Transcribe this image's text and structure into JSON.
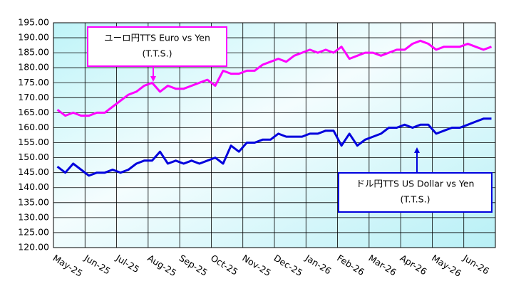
{
  "chart_data": {
    "type": "line",
    "categories": [
      "May-25",
      null,
      null,
      null,
      "Jun-25",
      null,
      null,
      null,
      "Jul-25",
      null,
      null,
      null,
      "Aug-25",
      null,
      null,
      null,
      "Sep-25",
      null,
      null,
      null,
      "Oct-25",
      null,
      null,
      null,
      "Nov-25",
      null,
      null,
      null,
      "Dec-25",
      null,
      null,
      null,
      "Jan-26",
      null,
      null,
      null,
      "Feb-26",
      null,
      null,
      null,
      "Mar-26",
      null,
      null,
      null,
      "Apr-26",
      null,
      null,
      null,
      "May-26",
      null,
      null,
      null,
      "Jun-26",
      null,
      null,
      null
    ],
    "series": [
      {
        "color": "#ff00ff",
        "values": [
          166,
          164,
          165,
          164,
          164,
          165,
          165,
          167,
          169,
          171,
          172,
          174,
          175,
          172,
          174,
          173,
          173,
          174,
          175,
          176,
          174,
          179,
          178,
          178,
          179,
          179,
          181,
          182,
          183,
          182,
          184,
          185,
          186,
          185,
          186,
          185,
          187,
          183,
          184,
          185,
          185,
          184,
          185,
          186,
          186,
          188,
          189,
          188,
          186,
          187,
          187,
          187,
          188,
          187,
          186,
          187
        ]
      },
      {
        "color": "#0000dd",
        "values": [
          147,
          145,
          148,
          146,
          144,
          145,
          145,
          146,
          145,
          146,
          148,
          149,
          149,
          152,
          148,
          149,
          148,
          149,
          148,
          149,
          150,
          148,
          154,
          152,
          155,
          155,
          156,
          156,
          158,
          157,
          157,
          157,
          158,
          158,
          159,
          159,
          154,
          158,
          154,
          156,
          157,
          158,
          160,
          160,
          161,
          160,
          161,
          161,
          158,
          159,
          160,
          160,
          161,
          162,
          163,
          163
        ]
      }
    ],
    "annotations": [
      [
        "ユーロ円TTS Euro vs Yen",
        "(T.T.S.)"
      ],
      [
        "ドル円TTS  US Dollar vs Yen",
        "(T.T.S.)"
      ]
    ],
    "ylim": [
      120,
      195
    ],
    "yticks": [
      {
        "value": 120,
        "label": "120.00"
      },
      {
        "value": 125,
        "label": "125.00"
      },
      {
        "value": 130,
        "label": "130.00"
      },
      {
        "value": 135,
        "label": "135.00"
      },
      {
        "value": 140,
        "label": "140.00"
      },
      {
        "value": 145,
        "label": "145.00"
      },
      {
        "value": 150,
        "label": "150.00"
      },
      {
        "value": 155,
        "label": "155.00"
      },
      {
        "value": 160,
        "label": "160.00"
      },
      {
        "value": 165,
        "label": "165.00"
      },
      {
        "value": 170,
        "label": "170.00"
      },
      {
        "value": 175,
        "label": "175.00"
      },
      {
        "value": 180,
        "label": "180.00"
      },
      {
        "value": 185,
        "label": "185.00"
      },
      {
        "value": 190,
        "label": "190.00"
      },
      {
        "value": 195,
        "label": "195.00"
      }
    ],
    "grid": true
  }
}
